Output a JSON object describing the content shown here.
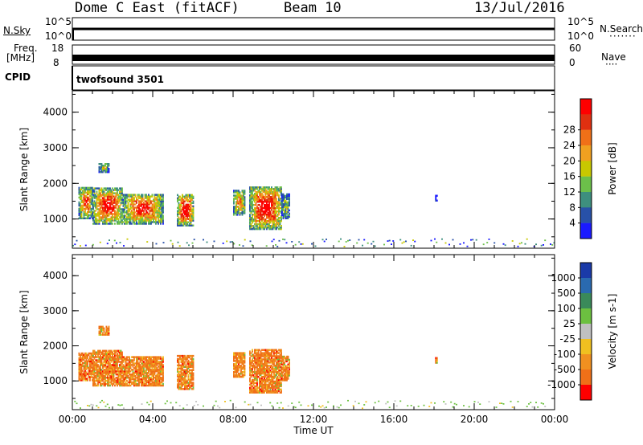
{
  "header": {
    "radar": "Dome C East (fitACF)",
    "beam": "Beam 10",
    "date": "13/Jul/2016"
  },
  "strip_labels": {
    "nsky": "N.Sky",
    "nsky_top": "10^5",
    "nsky_bottom": "10^0",
    "nsearch": "N.Search",
    "nsearch_top": "10^5",
    "nsearch_bottom": "10^0",
    "freq": "Freq.",
    "freq_unit": "[MHz]",
    "freq_top": "18",
    "freq_bottom": "8",
    "nave": "Nave",
    "nave_top": "60",
    "nave_bottom": "0",
    "cpid": "CPID",
    "cpid_value": "twofsound 3501"
  },
  "chart_data": [
    {
      "type": "heatmap",
      "name": "Power",
      "ylabel": "Slant Range [km]",
      "ylim": [
        180,
        4600
      ],
      "yticks": [
        "1000",
        "2000",
        "3000",
        "4000"
      ],
      "xlim": [
        0,
        24
      ],
      "colorbar_label": "Power [dB]",
      "colorbar_ticks": [
        "4",
        "8",
        "12",
        "16",
        "20",
        "24",
        "28"
      ],
      "colorbar_colors": [
        "#1a1aff",
        "#2851a8",
        "#3e8f7e",
        "#6cc04a",
        "#c8c800",
        "#f0a020",
        "#f07018",
        "#e03010",
        "#ff0000"
      ],
      "echo_regions": [
        {
          "t0": 0.3,
          "t1": 1.0,
          "r0": 1000,
          "r1": 1900,
          "level": 0.7
        },
        {
          "t0": 1.0,
          "t1": 2.5,
          "r0": 850,
          "r1": 1850,
          "level": 0.8
        },
        {
          "t0": 1.3,
          "t1": 1.8,
          "r0": 2300,
          "r1": 2550,
          "level": 0.4
        },
        {
          "t0": 2.5,
          "t1": 4.5,
          "r0": 850,
          "r1": 1700,
          "level": 0.75
        },
        {
          "t0": 5.2,
          "t1": 6.0,
          "r0": 800,
          "r1": 1700,
          "level": 0.85
        },
        {
          "t0": 8.0,
          "t1": 8.6,
          "r0": 1100,
          "r1": 1800,
          "level": 0.6
        },
        {
          "t0": 8.8,
          "t1": 10.4,
          "r0": 700,
          "r1": 1900,
          "level": 0.85
        },
        {
          "t0": 10.4,
          "t1": 10.8,
          "r0": 1000,
          "r1": 1700,
          "level": 0.35
        },
        {
          "t0": 18.05,
          "t1": 18.15,
          "r0": 1500,
          "r1": 1650,
          "level": 0.3
        }
      ]
    },
    {
      "type": "heatmap",
      "name": "Velocity",
      "ylabel": "Slant Range [km]",
      "ylim": [
        180,
        4600
      ],
      "yticks": [
        "1000",
        "2000",
        "3000",
        "4000"
      ],
      "xlim": [
        0,
        24
      ],
      "xticks": [
        "00:00",
        "04:00",
        "08:00",
        "12:00",
        "16:00",
        "20:00",
        "00:00"
      ],
      "xlabel": "Time UT",
      "colorbar_label": "Velocity [m s-1]",
      "colorbar_ticks": [
        "1000",
        "500",
        "100",
        "25",
        "-25",
        "-100",
        "-500",
        "-1000"
      ],
      "colorbar_colors": [
        "#1a3aa8",
        "#2a6ab0",
        "#3a8a5a",
        "#6cc040",
        "#c0c0c0",
        "#f0c020",
        "#f09020",
        "#f07018",
        "#ff0000"
      ],
      "echo_regions": [
        {
          "t0": 0.3,
          "t1": 1.0,
          "r0": 1000,
          "r1": 1800
        },
        {
          "t0": 1.0,
          "t1": 2.5,
          "r0": 850,
          "r1": 1850
        },
        {
          "t0": 1.3,
          "t1": 1.8,
          "r0": 2300,
          "r1": 2550
        },
        {
          "t0": 2.5,
          "t1": 4.5,
          "r0": 850,
          "r1": 1700
        },
        {
          "t0": 5.2,
          "t1": 6.0,
          "r0": 750,
          "r1": 1700
        },
        {
          "t0": 8.0,
          "t1": 8.6,
          "r0": 1100,
          "r1": 1800
        },
        {
          "t0": 8.8,
          "t1": 10.4,
          "r0": 650,
          "r1": 1900
        },
        {
          "t0": 10.4,
          "t1": 10.8,
          "r0": 1000,
          "r1": 1700
        },
        {
          "t0": 18.05,
          "t1": 18.15,
          "r0": 1500,
          "r1": 1650
        }
      ]
    }
  ],
  "colors": {
    "axis": "#000000",
    "noise": "#808080"
  }
}
